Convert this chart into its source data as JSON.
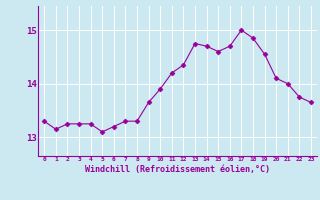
{
  "x": [
    0,
    1,
    2,
    3,
    4,
    5,
    6,
    7,
    8,
    9,
    10,
    11,
    12,
    13,
    14,
    15,
    16,
    17,
    18,
    19,
    20,
    21,
    22,
    23
  ],
  "y": [
    13.3,
    13.15,
    13.25,
    13.25,
    13.25,
    13.1,
    13.2,
    13.3,
    13.3,
    13.65,
    13.9,
    14.2,
    14.35,
    14.75,
    14.7,
    14.6,
    14.7,
    15.0,
    14.85,
    14.55,
    14.1,
    14.0,
    13.75,
    13.65
  ],
  "line_color": "#990099",
  "marker": "D",
  "marker_size": 2.5,
  "bg_color": "#cce8f0",
  "grid_color": "#ffffff",
  "xlabel": "Windchill (Refroidissement éolien,°C)",
  "xlabel_color": "#990099",
  "tick_color": "#990099",
  "yticks": [
    13,
    14,
    15
  ],
  "ylim": [
    12.65,
    15.45
  ],
  "xlim": [
    -0.5,
    23.5
  ],
  "xtick_labels": [
    "0",
    "1",
    "2",
    "3",
    "4",
    "5",
    "6",
    "7",
    "8",
    "9",
    "10",
    "11",
    "12",
    "13",
    "14",
    "15",
    "16",
    "17",
    "18",
    "19",
    "20",
    "21",
    "22",
    "23"
  ]
}
